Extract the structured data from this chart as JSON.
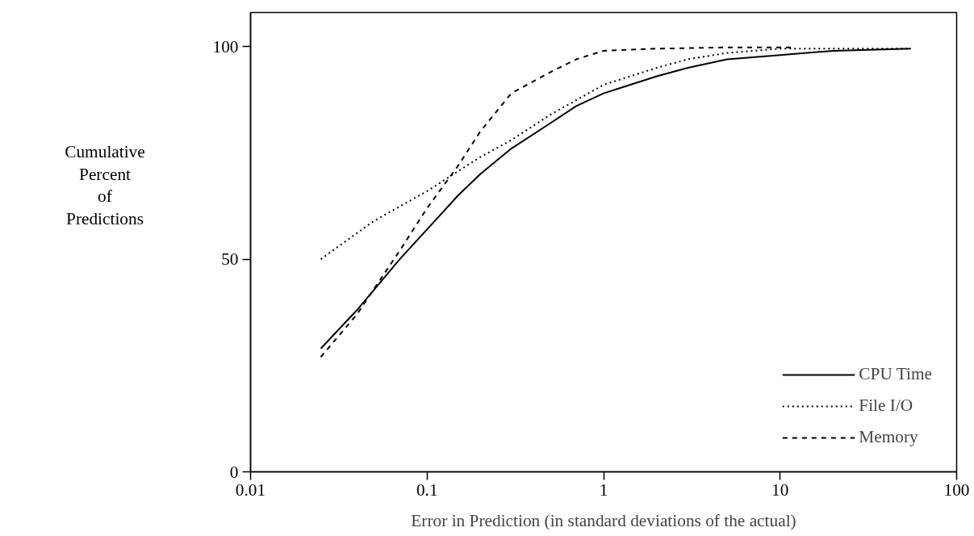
{
  "chart_data": {
    "type": "line",
    "xlabel": "Error in Prediction (in standard deviations of the actual)",
    "ylabel": "Cumulative\nPercent\nof\nPredictions",
    "log": "x",
    "xlim": [
      0.01,
      100
    ],
    "xticks": [
      0.01,
      0.1,
      1,
      10,
      100
    ],
    "ylim": [
      0,
      108
    ],
    "yticks": [
      0,
      50,
      100
    ],
    "grid": false,
    "legend": "bottom right",
    "series": [
      {
        "name": "CPU Time",
        "color": "#000000",
        "line_style": "solid",
        "x": [
          0.025,
          0.04,
          0.07,
          0.1,
          0.15,
          0.2,
          0.3,
          0.5,
          0.7,
          1,
          2,
          3,
          5,
          10,
          20,
          55
        ],
        "values": [
          29,
          38,
          50,
          57,
          65,
          70,
          76,
          82,
          86,
          89,
          93,
          95,
          97,
          98,
          99,
          99.5
        ]
      },
      {
        "name": "File I/O",
        "color": "#000000",
        "line_style": "dotted",
        "x": [
          0.025,
          0.05,
          0.1,
          0.2,
          0.3,
          0.5,
          1,
          2,
          3,
          5,
          10,
          55
        ],
        "values": [
          50,
          59,
          66,
          74,
          78,
          84,
          91,
          95,
          97,
          98.5,
          99.5,
          99.5
        ]
      },
      {
        "name": "Memory",
        "color": "#000000",
        "line_style": "dashed",
        "x": [
          0.025,
          0.04,
          0.07,
          0.1,
          0.15,
          0.2,
          0.3,
          0.5,
          0.7,
          1,
          2,
          5,
          12
        ],
        "values": [
          27,
          37,
          52,
          62,
          72,
          80,
          89,
          94,
          97,
          99,
          99.5,
          99.8,
          99.8
        ]
      }
    ]
  }
}
